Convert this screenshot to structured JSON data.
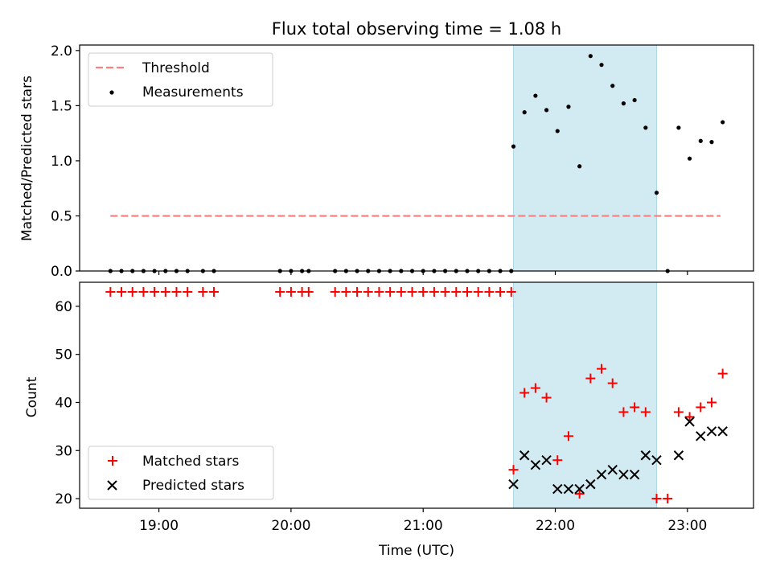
{
  "title": "Flux total observing time = 1.08 h",
  "xlabel": "Time (UTC)",
  "x_ticks": [
    "19:00",
    "20:00",
    "21:00",
    "22:00",
    "23:00"
  ],
  "colors": {
    "highlight": "#add8e6",
    "threshold": "#ff7f7f",
    "matched": "#ff0000",
    "predicted": "#000000",
    "measurement": "#000000"
  },
  "chart_data": [
    {
      "type": "scatter",
      "ylabel": "Matched/Predicted stars",
      "xlim": [
        "18:24",
        "23:30"
      ],
      "ylim": [
        0,
        2.05
      ],
      "y_ticks": [
        "0.0",
        "0.5",
        "1.0",
        "1.5",
        "2.0"
      ],
      "legend_position": "top-left",
      "highlight_span": [
        "21:41",
        "22:46"
      ],
      "threshold": {
        "name": "Threshold",
        "value": 0.5,
        "x_range": [
          "18:38",
          "23:15"
        ],
        "style": "dashed"
      },
      "series": [
        {
          "name": "Measurements",
          "x": [
            "18:38",
            "18:43",
            "18:48",
            "18:53",
            "18:58",
            "19:03",
            "19:08",
            "19:13",
            "19:20",
            "19:25",
            "19:55",
            "20:00",
            "20:05",
            "20:08",
            "20:20",
            "20:25",
            "20:30",
            "20:35",
            "20:40",
            "20:45",
            "20:50",
            "20:55",
            "21:00",
            "21:05",
            "21:10",
            "21:15",
            "21:20",
            "21:25",
            "21:30",
            "21:35",
            "21:40",
            "21:41",
            "21:46",
            "21:51",
            "21:56",
            "22:01",
            "22:06",
            "22:11",
            "22:16",
            "22:21",
            "22:26",
            "22:31",
            "22:36",
            "22:41",
            "22:46",
            "22:51",
            "22:56",
            "23:01",
            "23:06",
            "23:11",
            "23:16"
          ],
          "y": [
            0,
            0,
            0,
            0,
            0,
            0,
            0,
            0,
            0,
            0,
            0,
            0,
            0,
            0,
            0,
            0,
            0,
            0,
            0,
            0,
            0,
            0,
            0,
            0,
            0,
            0,
            0,
            0,
            0,
            0,
            0,
            1.13,
            1.44,
            1.59,
            1.46,
            1.27,
            1.49,
            0.95,
            1.95,
            1.87,
            1.68,
            1.52,
            1.55,
            1.3,
            0.71,
            0.0,
            1.3,
            1.02,
            1.18,
            1.17,
            1.35
          ]
        }
      ]
    },
    {
      "type": "scatter",
      "ylabel": "Count",
      "xlim": [
        "18:24",
        "23:30"
      ],
      "ylim": [
        18,
        65
      ],
      "y_ticks": [
        "20",
        "30",
        "40",
        "50",
        "60"
      ],
      "legend_position": "bottom-left",
      "highlight_span": [
        "21:41",
        "22:46"
      ],
      "series": [
        {
          "name": "Matched stars",
          "marker": "+",
          "x": [
            "18:38",
            "18:43",
            "18:48",
            "18:53",
            "18:58",
            "19:03",
            "19:08",
            "19:13",
            "19:20",
            "19:25",
            "19:55",
            "20:00",
            "20:05",
            "20:08",
            "20:20",
            "20:25",
            "20:30",
            "20:35",
            "20:40",
            "20:45",
            "20:50",
            "20:55",
            "21:00",
            "21:05",
            "21:10",
            "21:15",
            "21:20",
            "21:25",
            "21:30",
            "21:35",
            "21:40",
            "21:41",
            "21:46",
            "21:51",
            "21:56",
            "22:01",
            "22:06",
            "22:11",
            "22:16",
            "22:21",
            "22:26",
            "22:31",
            "22:36",
            "22:41",
            "22:46",
            "22:51",
            "22:56",
            "23:01",
            "23:06",
            "23:11",
            "23:16"
          ],
          "y": [
            63,
            63,
            63,
            63,
            63,
            63,
            63,
            63,
            63,
            63,
            63,
            63,
            63,
            63,
            63,
            63,
            63,
            63,
            63,
            63,
            63,
            63,
            63,
            63,
            63,
            63,
            63,
            63,
            63,
            63,
            63,
            26,
            42,
            43,
            41,
            28,
            33,
            21,
            45,
            47,
            44,
            38,
            39,
            38,
            20,
            20,
            38,
            37,
            39,
            40,
            46
          ]
        },
        {
          "name": "Predicted stars",
          "marker": "x",
          "x": [
            "21:41",
            "21:46",
            "21:51",
            "21:56",
            "22:01",
            "22:06",
            "22:11",
            "22:16",
            "22:21",
            "22:26",
            "22:31",
            "22:36",
            "22:41",
            "22:46",
            "22:56",
            "23:01",
            "23:06",
            "23:11",
            "23:16"
          ],
          "y": [
            23,
            29,
            27,
            28,
            22,
            22,
            22,
            23,
            25,
            26,
            25,
            25,
            29,
            28,
            29,
            36,
            33,
            34,
            34
          ]
        }
      ]
    }
  ]
}
